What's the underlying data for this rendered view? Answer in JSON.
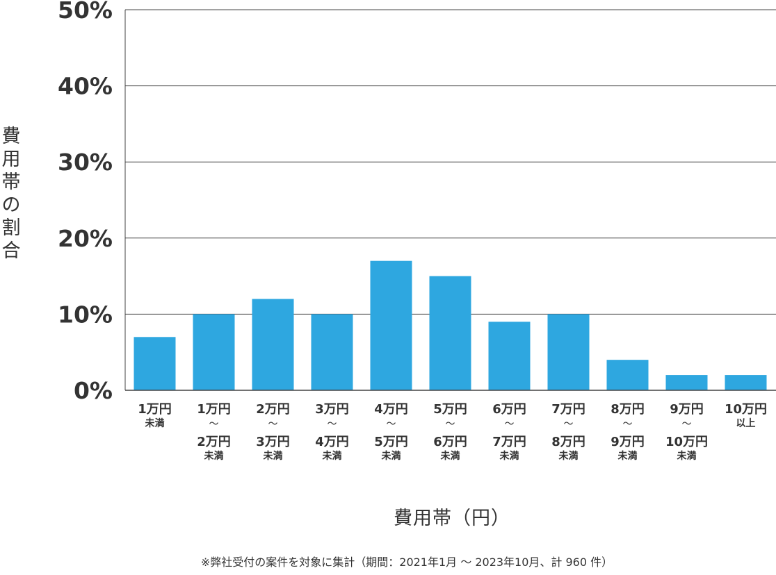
{
  "chart_data": {
    "type": "bar",
    "categories": [
      [
        "1万円",
        "未満"
      ],
      [
        "1万円",
        "〜",
        "2万円",
        "未満"
      ],
      [
        "2万円",
        "〜",
        "3万円",
        "未満"
      ],
      [
        "3万円",
        "〜",
        "4万円",
        "未満"
      ],
      [
        "4万円",
        "〜",
        "5万円",
        "未満"
      ],
      [
        "5万円",
        "〜",
        "6万円",
        "未満"
      ],
      [
        "6万円",
        "〜",
        "7万円",
        "未満"
      ],
      [
        "7万円",
        "〜",
        "8万円",
        "未満"
      ],
      [
        "8万円",
        "〜",
        "9万円",
        "未満"
      ],
      [
        "9万円",
        "〜",
        "10万円",
        "未満"
      ],
      [
        "10万円",
        "以上"
      ]
    ],
    "values": [
      7,
      10,
      12,
      10,
      17,
      15,
      9,
      10,
      4,
      2,
      2
    ],
    "unit": "%",
    "ylim": [
      0,
      50
    ],
    "yticks": [
      0,
      10,
      20,
      30,
      40,
      50
    ],
    "ytick_labels": [
      "0%",
      "10%",
      "20%",
      "30%",
      "40%",
      "50%"
    ],
    "ylabel": "費用帯の割合",
    "xlabel": "費用帯（円）",
    "bar_color": "#2ea7e0",
    "grid": true
  },
  "footnote": "※弊社受付の案件を対象に集計（期間：2021年1月 〜 2023年10月、計 960 件）"
}
